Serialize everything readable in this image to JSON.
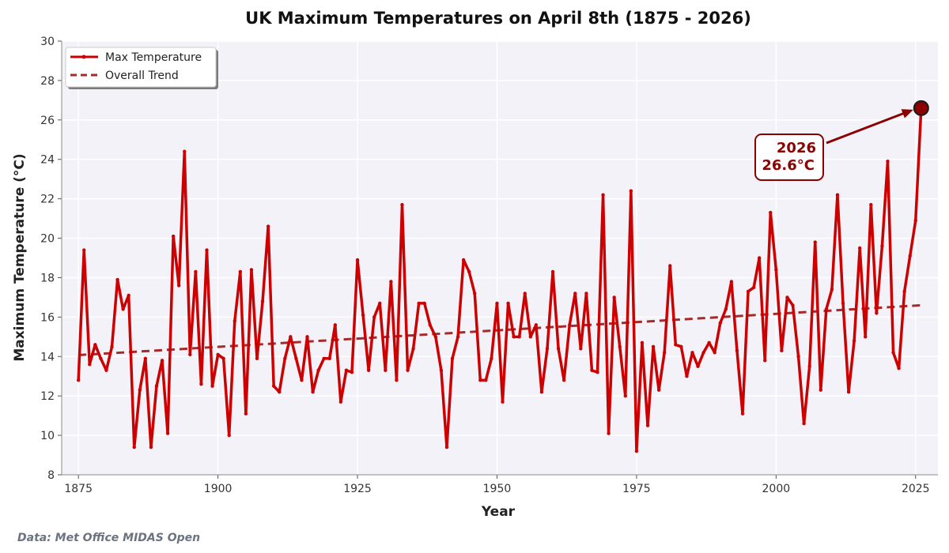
{
  "chart_data": {
    "type": "line",
    "title": "UK Maximum Temperatures on April 8th (1875 - 2026)",
    "xlabel": "Year",
    "ylabel": "Maximum Temperature (°C)",
    "xlim": [
      1872,
      2029
    ],
    "ylim": [
      8,
      30
    ],
    "xticks": [
      1875,
      1900,
      1925,
      1950,
      1975,
      2000,
      2025
    ],
    "yticks": [
      8,
      10,
      12,
      14,
      16,
      18,
      20,
      22,
      24,
      26,
      28,
      30
    ],
    "grid": true,
    "legend_position": "top-left",
    "series": [
      {
        "name": "Max Temperature",
        "color": "#cc0000",
        "style": "solid",
        "x": [
          1875,
          1876,
          1877,
          1878,
          1879,
          1880,
          1881,
          1882,
          1883,
          1884,
          1885,
          1886,
          1887,
          1888,
          1889,
          1890,
          1891,
          1892,
          1893,
          1894,
          1895,
          1896,
          1897,
          1898,
          1899,
          1900,
          1901,
          1902,
          1903,
          1904,
          1905,
          1906,
          1907,
          1908,
          1909,
          1910,
          1911,
          1912,
          1913,
          1914,
          1915,
          1916,
          1917,
          1918,
          1919,
          1920,
          1921,
          1922,
          1923,
          1924,
          1925,
          1926,
          1927,
          1928,
          1929,
          1930,
          1931,
          1932,
          1933,
          1934,
          1935,
          1936,
          1937,
          1938,
          1939,
          1940,
          1941,
          1942,
          1943,
          1944,
          1945,
          1946,
          1947,
          1948,
          1949,
          1950,
          1951,
          1952,
          1953,
          1954,
          1955,
          1956,
          1957,
          1958,
          1959,
          1960,
          1961,
          1962,
          1963,
          1964,
          1965,
          1966,
          1967,
          1968,
          1969,
          1970,
          1971,
          1972,
          1973,
          1974,
          1975,
          1976,
          1977,
          1978,
          1979,
          1980,
          1981,
          1982,
          1983,
          1984,
          1985,
          1986,
          1987,
          1988,
          1989,
          1990,
          1991,
          1992,
          1993,
          1994,
          1995,
          1996,
          1997,
          1998,
          1999,
          2000,
          2001,
          2002,
          2003,
          2004,
          2005,
          2006,
          2007,
          2008,
          2009,
          2010,
          2011,
          2012,
          2013,
          2014,
          2015,
          2016,
          2017,
          2018,
          2019,
          2020,
          2021,
          2022,
          2023,
          2024,
          2025,
          2026
        ],
        "values": [
          12.8,
          19.4,
          13.6,
          14.6,
          13.9,
          13.3,
          14.5,
          17.9,
          16.4,
          17.1,
          9.4,
          12.3,
          13.9,
          9.4,
          12.5,
          13.8,
          10.1,
          20.1,
          17.6,
          24.4,
          14.1,
          18.3,
          12.6,
          19.4,
          12.5,
          14.1,
          13.9,
          10.0,
          15.8,
          18.3,
          11.1,
          18.4,
          13.9,
          16.8,
          20.6,
          12.5,
          12.2,
          13.9,
          15.0,
          13.9,
          12.8,
          15.0,
          12.2,
          13.3,
          13.9,
          13.9,
          15.6,
          11.7,
          13.3,
          13.2,
          18.9,
          16.1,
          13.3,
          16.0,
          16.7,
          13.3,
          17.8,
          12.8,
          21.7,
          13.3,
          14.4,
          16.7,
          16.7,
          15.6,
          15.0,
          13.3,
          9.4,
          13.9,
          15.0,
          18.9,
          18.3,
          17.2,
          12.8,
          12.8,
          13.9,
          16.7,
          11.7,
          16.7,
          15.0,
          15.0,
          17.2,
          15.0,
          15.6,
          12.2,
          14.4,
          18.3,
          14.4,
          12.8,
          15.6,
          17.2,
          14.4,
          17.2,
          13.3,
          13.2,
          22.2,
          10.1,
          17.0,
          14.5,
          12.0,
          22.4,
          9.2,
          14.7,
          10.5,
          14.5,
          12.3,
          14.2,
          18.6,
          14.6,
          14.5,
          13.0,
          14.2,
          13.5,
          14.2,
          14.7,
          14.2,
          15.7,
          16.4,
          17.8,
          14.3,
          11.1,
          17.3,
          17.5,
          19.0,
          13.8,
          21.3,
          18.4,
          14.3,
          17.0,
          16.6,
          14.0,
          10.6,
          13.5,
          19.8,
          12.3,
          16.4,
          17.4,
          22.2,
          16.7,
          12.2,
          14.8,
          19.5,
          15.0,
          21.7,
          16.2,
          19.6,
          23.9,
          14.2,
          13.4,
          17.3,
          19.1,
          20.9,
          26.6
        ]
      },
      {
        "name": "Overall Trend",
        "color": "#a52a2a",
        "style": "dashed",
        "x": [
          1875,
          2026
        ],
        "values": [
          14.07,
          16.6
        ]
      }
    ],
    "annotation": {
      "year_label": "2026",
      "value_label": "26.6°C",
      "target_x": 2026,
      "target_y": 26.6
    },
    "source": "Data: Met Office MIDAS Open"
  },
  "colors": {
    "plot_bg": "#f2f2f8",
    "grid": "#ffffff",
    "line": "#cc0000",
    "trend": "#a52a2a",
    "highlight": "#8b0000"
  }
}
